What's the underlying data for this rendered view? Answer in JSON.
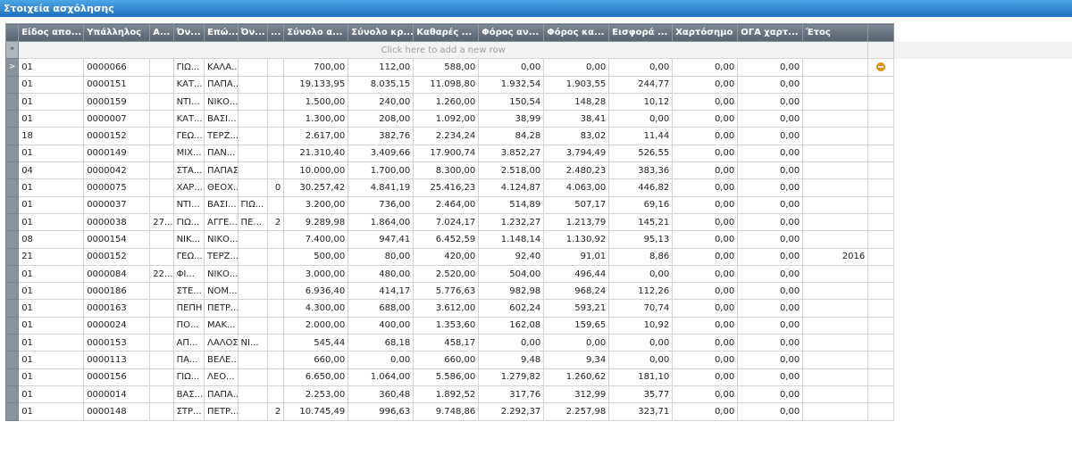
{
  "title": "Στοιχεία ασχόλησης",
  "new_row_text": "Click here to add a new row",
  "current_row_marker": ">",
  "new_row_marker": "*",
  "columns": [
    "Είδος απο...",
    "Υπάλληλος",
    "Α...",
    "Όν...",
    "Επώ...",
    "Όν...",
    "...",
    "Σύνολο α...",
    "Σύνολο κρ...",
    "Καθαρές ...",
    "Φόρος αν...",
    "Φόρος κα...",
    "Εισφορά ...",
    "Χαρτόσημο",
    "ΟΓΑ χαρτ...",
    "Έτος"
  ],
  "rows": [
    [
      "01",
      "0000066",
      "",
      "ΓΙΩ...",
      "ΚΑΛΑ...",
      "",
      "",
      "700,00",
      "112,00",
      "588,00",
      "0,00",
      "0,00",
      "0,00",
      "0,00",
      "0,00",
      ""
    ],
    [
      "01",
      "0000151",
      "",
      "ΚΑΤ...",
      "ΠΑΠΑ...",
      "",
      "",
      "19.133,95",
      "8.035,15",
      "11.098,80",
      "1.932,54",
      "1.903,55",
      "244,77",
      "0,00",
      "0,00",
      ""
    ],
    [
      "01",
      "0000159",
      "",
      "ΝΤΙ...",
      "ΝΙΚΟ...",
      "",
      "",
      "1.500,00",
      "240,00",
      "1.260,00",
      "150,54",
      "148,28",
      "10,12",
      "0,00",
      "0,00",
      ""
    ],
    [
      "01",
      "0000007",
      "",
      "ΚΑΤ...",
      "ΒΑΣΙ...",
      "",
      "",
      "1.300,00",
      "208,00",
      "1.092,00",
      "38,99",
      "38,41",
      "0,00",
      "0,00",
      "0,00",
      ""
    ],
    [
      "18",
      "0000152",
      "",
      "ΓΕΩ...",
      "ΤΕΡΖ...",
      "",
      "",
      "2.617,00",
      "382,76",
      "2.234,24",
      "84,28",
      "83,02",
      "11,44",
      "0,00",
      "0,00",
      ""
    ],
    [
      "01",
      "0000149",
      "",
      "ΜΙΧ...",
      "ΠΑΝ...",
      "",
      "",
      "21.310,40",
      "3.409,66",
      "17.900,74",
      "3.852,27",
      "3.794,49",
      "526,55",
      "0,00",
      "0,00",
      ""
    ],
    [
      "04",
      "0000042",
      "",
      "ΣΤΑ...",
      "ΠΑΠΑΣ",
      "",
      "",
      "10.000,00",
      "1.700,00",
      "8.300,00",
      "2.518,00",
      "2.480,23",
      "383,36",
      "0,00",
      "0,00",
      ""
    ],
    [
      "01",
      "0000075",
      "",
      "ΧΑΡ...",
      "ΘΕΟΧ...",
      "",
      "0",
      "30.257,42",
      "4.841,19",
      "25.416,23",
      "4.124,87",
      "4.063,00",
      "446,82",
      "0,00",
      "0,00",
      ""
    ],
    [
      "01",
      "0000037",
      "",
      "ΝΤΙ...",
      "ΒΑΣΙ...",
      "ΓΙΩ...",
      "",
      "3.200,00",
      "736,00",
      "2.464,00",
      "514,89",
      "507,17",
      "69,16",
      "0,00",
      "0,00",
      ""
    ],
    [
      "01",
      "0000038",
      "27...",
      "ΓΙΩ...",
      "ΑΓΓΕ...",
      "ΠΕ...",
      "2",
      "9.289,98",
      "1.864,00",
      "7.024,17",
      "1.232,27",
      "1.213,79",
      "145,21",
      "0,00",
      "0,00",
      ""
    ],
    [
      "08",
      "0000154",
      "",
      "ΝΙΚ...",
      "ΝΙΚΟ...",
      "",
      "",
      "7.400,00",
      "947,41",
      "6.452,59",
      "1.148,14",
      "1.130,92",
      "95,13",
      "0,00",
      "0,00",
      ""
    ],
    [
      "21",
      "0000152",
      "",
      "ΓΕΩ...",
      "ΤΕΡΖ...",
      "",
      "",
      "500,00",
      "80,00",
      "420,00",
      "92,40",
      "91,01",
      "8,86",
      "0,00",
      "0,00",
      "2016"
    ],
    [
      "01",
      "0000084",
      "22...",
      "ΦΙ...",
      "ΝΙΚΟ...",
      "",
      "",
      "3.000,00",
      "480,00",
      "2.520,00",
      "504,00",
      "496,44",
      "0,00",
      "0,00",
      "0,00",
      ""
    ],
    [
      "01",
      "0000186",
      "",
      "ΣΤΕ...",
      "ΝΟΜ...",
      "",
      "",
      "6.936,40",
      "414,17",
      "5.776,63",
      "982,98",
      "968,24",
      "112,26",
      "0,00",
      "0,00",
      ""
    ],
    [
      "01",
      "0000163",
      "",
      "ΠΕΠΗ",
      "ΠΕΤΡ...",
      "",
      "",
      "4.300,00",
      "688,00",
      "3.612,00",
      "602,24",
      "593,21",
      "70,74",
      "0,00",
      "0,00",
      ""
    ],
    [
      "01",
      "0000024",
      "",
      "ΠΟ...",
      "ΜΑΚ...",
      "",
      "",
      "2.000,00",
      "400,00",
      "1.353,60",
      "162,08",
      "159,65",
      "10,92",
      "0,00",
      "0,00",
      ""
    ],
    [
      "01",
      "0000153",
      "",
      "ΑΠ...",
      "ΛΑΛΟΣ",
      "ΝΙ...",
      "",
      "545,44",
      "68,18",
      "458,17",
      "0,00",
      "0,00",
      "0,00",
      "0,00",
      "0,00",
      ""
    ],
    [
      "01",
      "0000113",
      "",
      "ΠΑ...",
      "ΒΕΛΕ...",
      "",
      "",
      "660,00",
      "0,00",
      "660,00",
      "9,48",
      "9,34",
      "0,00",
      "0,00",
      "0,00",
      ""
    ],
    [
      "01",
      "0000156",
      "",
      "ΓΙΩ...",
      "ΛΕΟ...",
      "",
      "",
      "6.650,00",
      "1.064,00",
      "5.586,00",
      "1.279,82",
      "1.260,62",
      "181,10",
      "0,00",
      "0,00",
      ""
    ],
    [
      "01",
      "0000014",
      "",
      "ΒΑΣ...",
      "ΠΑΠΑ...",
      "",
      "",
      "2.253,00",
      "360,48",
      "1.892,52",
      "317,76",
      "312,99",
      "35,77",
      "0,00",
      "0,00",
      ""
    ],
    [
      "01",
      "0000148",
      "",
      "ΣΤΡ...",
      "ΠΕΤΡ...",
      "",
      "2",
      "10.745,49",
      "996,63",
      "9.748,86",
      "2.292,37",
      "2.257,98",
      "323,71",
      "0,00",
      "0,00",
      ""
    ]
  ]
}
